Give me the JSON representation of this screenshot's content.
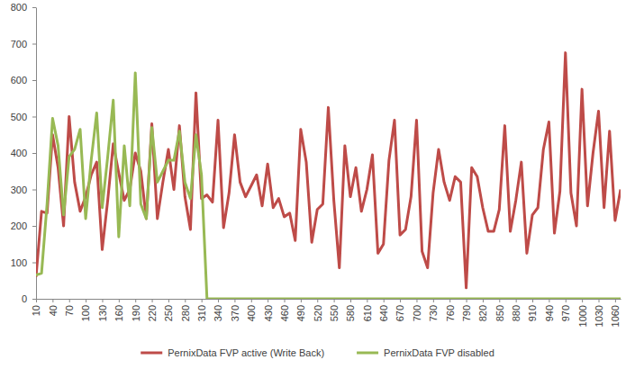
{
  "chart_data": {
    "type": "line",
    "x": [
      10,
      20,
      30,
      40,
      50,
      60,
      70,
      80,
      90,
      100,
      110,
      120,
      130,
      140,
      150,
      160,
      170,
      180,
      190,
      200,
      210,
      220,
      230,
      240,
      250,
      260,
      270,
      280,
      290,
      300,
      310,
      320,
      330,
      340,
      350,
      360,
      370,
      380,
      390,
      400,
      410,
      420,
      430,
      440,
      450,
      460,
      470,
      480,
      490,
      500,
      510,
      520,
      530,
      540,
      550,
      560,
      570,
      580,
      590,
      600,
      610,
      620,
      630,
      640,
      650,
      660,
      670,
      680,
      690,
      700,
      710,
      720,
      730,
      740,
      750,
      760,
      770,
      780,
      790,
      800,
      810,
      820,
      830,
      840,
      850,
      860,
      870,
      880,
      890,
      900,
      910,
      920,
      930,
      940,
      950,
      960,
      970,
      980,
      990,
      1000,
      1010,
      1020,
      1030,
      1040,
      1050,
      1060,
      1070
    ],
    "xlim": [
      10,
      1070
    ],
    "xticks": [
      10,
      40,
      70,
      100,
      130,
      160,
      190,
      220,
      250,
      280,
      310,
      340,
      370,
      400,
      430,
      460,
      490,
      520,
      550,
      580,
      610,
      640,
      670,
      700,
      730,
      760,
      790,
      820,
      850,
      880,
      910,
      940,
      970,
      1000,
      1030,
      1060
    ],
    "ylim": [
      0,
      800
    ],
    "yticks": [
      0,
      100,
      200,
      300,
      400,
      500,
      600,
      700,
      800
    ],
    "grid": false,
    "legend": "bottom",
    "series": [
      {
        "name": "PernixData FVP active (Write Back)",
        "color": "#be4b48",
        "values": [
          60,
          240,
          235,
          450,
          360,
          200,
          500,
          320,
          240,
          280,
          340,
          375,
          135,
          270,
          425,
          345,
          270,
          300,
          400,
          350,
          220,
          480,
          220,
          320,
          410,
          300,
          475,
          280,
          190,
          565,
          275,
          285,
          265,
          490,
          195,
          290,
          450,
          320,
          280,
          310,
          340,
          255,
          370,
          250,
          275,
          225,
          235,
          160,
          465,
          375,
          155,
          245,
          260,
          525,
          270,
          85,
          420,
          280,
          360,
          240,
          300,
          395,
          125,
          150,
          380,
          490,
          175,
          190,
          280,
          490,
          130,
          85,
          290,
          410,
          320,
          270,
          335,
          320,
          30,
          360,
          335,
          250,
          185,
          185,
          245,
          475,
          185,
          270,
          375,
          125,
          230,
          250,
          410,
          485,
          180,
          295,
          675,
          290,
          200,
          575,
          255,
          400,
          515,
          250,
          460,
          215,
          300
        ]
      },
      {
        "name": "PernixData FVP disabled",
        "color": "#98b954",
        "values": [
          65,
          70,
          260,
          495,
          420,
          230,
          390,
          410,
          465,
          220,
          380,
          510,
          250,
          390,
          545,
          170,
          420,
          255,
          620,
          260,
          220,
          470,
          320,
          350,
          380,
          380,
          460,
          320,
          275,
          450,
          340,
          0,
          0,
          0,
          0,
          0,
          0,
          0,
          0,
          0,
          0,
          0,
          0,
          0,
          0,
          0,
          0,
          0,
          0,
          0,
          0,
          0,
          0,
          0,
          0,
          0,
          0,
          0,
          0,
          0,
          0,
          0,
          0,
          0,
          0,
          0,
          0,
          0,
          0,
          0,
          0,
          0,
          0,
          0,
          0,
          0,
          0,
          0,
          0,
          0,
          0,
          0,
          0,
          0,
          0,
          0,
          0,
          0,
          0,
          0,
          0,
          0,
          0,
          0,
          0,
          0,
          0,
          0,
          0,
          0,
          0,
          0,
          0,
          0,
          0,
          0,
          0
        ]
      }
    ]
  }
}
